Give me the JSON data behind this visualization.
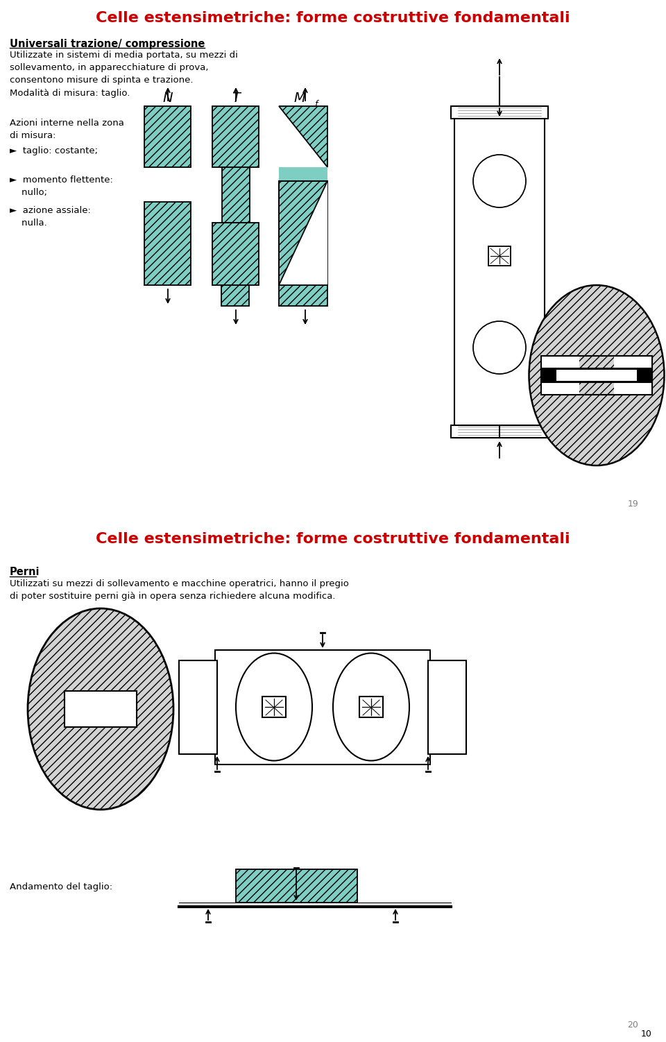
{
  "title1": "Celle estensimetriche: forme costruttive fondamentali",
  "title2": "Celle estensimetriche: forme costruttive fondamentali",
  "title_color": "#cc0000",
  "title_fontsize": 16,
  "bg_color": "#ffffff",
  "teal_color": "#7ecec4",
  "page1_num": "19",
  "page2_num": "20",
  "page_corner": "10"
}
